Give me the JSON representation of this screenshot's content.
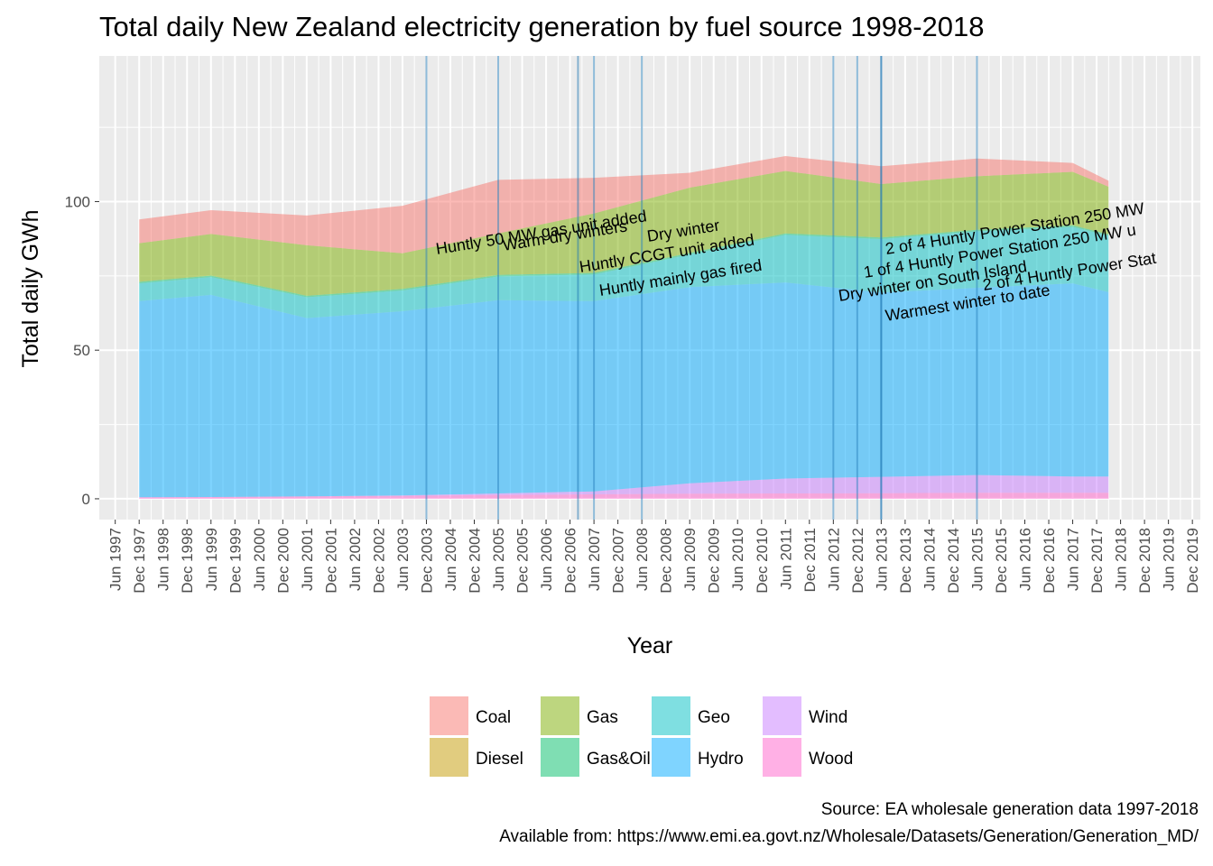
{
  "chart_data": {
    "type": "area",
    "title": "Total daily New Zealand electricity generation by fuel source 1998-2018",
    "xlabel": "Year",
    "ylabel": "Total daily GWh",
    "ylim": [
      -7,
      149
    ],
    "y_ticks": [
      0,
      50,
      100
    ],
    "x_ticks": [
      "Jun 1997",
      "Dec 1997",
      "Jun 1998",
      "Dec 1998",
      "Jun 1999",
      "Dec 1999",
      "Jun 2000",
      "Dec 2000",
      "Jun 2001",
      "Dec 2001",
      "Jun 2002",
      "Dec 2002",
      "Jun 2003",
      "Dec 2003",
      "Jun 2004",
      "Dec 2004",
      "Jun 2005",
      "Dec 2005",
      "Jun 2006",
      "Dec 2006",
      "Jun 2007",
      "Dec 2007",
      "Jun 2008",
      "Dec 2008",
      "Jun 2009",
      "Dec 2009",
      "Jun 2010",
      "Dec 2010",
      "Jun 2011",
      "Dec 2011",
      "Jun 2012",
      "Dec 2012",
      "Jun 2013",
      "Dec 2013",
      "Jun 2014",
      "Dec 2014",
      "Jun 2015",
      "Dec 2015",
      "Jun 2016",
      "Dec 2016",
      "Jun 2017",
      "Dec 2017",
      "Jun 2018",
      "Dec 2018",
      "Jun 2019",
      "Dec 2019"
    ],
    "grid": true,
    "legend_position": "bottom",
    "stack_order": [
      "Wood",
      "Wind",
      "Hydro",
      "Geo",
      "Gas&Oil",
      "Gas",
      "Diesel",
      "Coal"
    ],
    "legend": [
      {
        "name": "Coal",
        "color": "#F8766D"
      },
      {
        "name": "Diesel",
        "color": "#C49A00"
      },
      {
        "name": "Gas",
        "color": "#7CAE00"
      },
      {
        "name": "Gas&Oil",
        "color": "#00BE67"
      },
      {
        "name": "Geo",
        "color": "#00BFC4"
      },
      {
        "name": "Hydro",
        "color": "#00A9FF"
      },
      {
        "name": "Wind",
        "color": "#C77CFF"
      },
      {
        "name": "Wood",
        "color": "#FF61CC"
      }
    ],
    "series": [
      {
        "name": "Wood",
        "x": [
          "1997-12",
          "1999-06",
          "2001-06",
          "2003-06",
          "2005-06",
          "2007-06",
          "2009-06",
          "2011-06",
          "2013-06",
          "2015-06",
          "2017-06",
          "2018-03"
        ],
        "values": [
          0.5,
          0.6,
          0.8,
          1.0,
          1.3,
          1.5,
          1.7,
          1.8,
          1.9,
          2.0,
          2.0,
          2.0
        ]
      },
      {
        "name": "Wind",
        "x": [
          "1997-12",
          "1999-06",
          "2001-06",
          "2003-06",
          "2005-06",
          "2007-06",
          "2009-06",
          "2011-06",
          "2013-06",
          "2015-06",
          "2017-06",
          "2018-03"
        ],
        "values": [
          0,
          0,
          0,
          0.1,
          0.5,
          1.0,
          3.5,
          5.0,
          5.5,
          6.0,
          5.5,
          5.5
        ]
      },
      {
        "name": "Hydro",
        "x": [
          "1997-12",
          "1999-06",
          "2001-06",
          "2003-06",
          "2005-06",
          "2007-06",
          "2009-06",
          "2011-06",
          "2013-06",
          "2015-06",
          "2017-06",
          "2018-03"
        ],
        "values": [
          66,
          68,
          60,
          62,
          65,
          64,
          66,
          66,
          62,
          63,
          65,
          62
        ]
      },
      {
        "name": "Geo",
        "x": [
          "1997-12",
          "1999-06",
          "2001-06",
          "2003-06",
          "2005-06",
          "2007-06",
          "2009-06",
          "2011-06",
          "2013-06",
          "2015-06",
          "2017-06",
          "2018-03"
        ],
        "values": [
          6,
          6,
          7,
          7,
          8,
          9,
          11,
          16,
          18,
          19,
          19,
          19
        ]
      },
      {
        "name": "Gas&Oil",
        "x": [
          "1997-12",
          "1999-06",
          "2001-06",
          "2003-06",
          "2005-06",
          "2007-06",
          "2009-06",
          "2011-06",
          "2013-06",
          "2015-06",
          "2017-06",
          "2018-03"
        ],
        "values": [
          0.5,
          0.5,
          0.5,
          0.5,
          0.5,
          0.5,
          0.5,
          0.5,
          0.5,
          0.5,
          0.5,
          0.5
        ]
      },
      {
        "name": "Gas",
        "x": [
          "1997-12",
          "1999-06",
          "2001-06",
          "2003-06",
          "2005-06",
          "2007-06",
          "2009-06",
          "2011-06",
          "2013-06",
          "2015-06",
          "2017-06",
          "2018-03"
        ],
        "values": [
          13,
          14,
          17,
          12,
          14,
          20,
          22,
          21,
          18,
          18,
          18,
          16
        ]
      },
      {
        "name": "Diesel",
        "x": [
          "1997-12",
          "1999-06",
          "2001-06",
          "2003-06",
          "2005-06",
          "2007-06",
          "2009-06",
          "2011-06",
          "2013-06",
          "2015-06",
          "2017-06",
          "2018-03"
        ],
        "values": [
          0,
          0,
          0,
          0,
          0,
          0,
          0,
          0,
          0,
          0,
          0,
          0
        ]
      },
      {
        "name": "Coal",
        "x": [
          "1997-12",
          "1999-06",
          "2001-06",
          "2003-06",
          "2005-06",
          "2007-06",
          "2009-06",
          "2011-06",
          "2013-06",
          "2015-06",
          "2017-06",
          "2018-03"
        ],
        "values": [
          8,
          8,
          10,
          16,
          18,
          12,
          5,
          5,
          6,
          6,
          3,
          2
        ]
      }
    ],
    "annotations": [
      {
        "label": "Huntly 50 MW gas unit added",
        "date": "2003-12"
      },
      {
        "label": "Warm dry winters",
        "date": "2005-06"
      },
      {
        "label": "Huntly CCGT unit added",
        "date": "2007-02"
      },
      {
        "label": "Huntly mainly gas fired",
        "date": "2007-06"
      },
      {
        "label": "Dry winter",
        "date": "2008-06"
      },
      {
        "label": "Dry winter on South Island",
        "date": "2012-06"
      },
      {
        "label": "1 of 4 Huntly Power Station 250 MW u",
        "date": "2012-12"
      },
      {
        "label": "2 of 4 Huntly Power Station 250 MW",
        "date": "2013-06"
      },
      {
        "label": "Warmest winter to date",
        "date": "2013-06"
      },
      {
        "label": "2 of 4 Huntly Power Stat",
        "date": "2015-06"
      }
    ]
  },
  "caption": {
    "line1": "Source: EA wholesale generation data 1997-2018",
    "line2": "Available from: https://www.emi.ea.govt.nz/Wholesale/Datasets/Generation/Generation_MD/"
  }
}
